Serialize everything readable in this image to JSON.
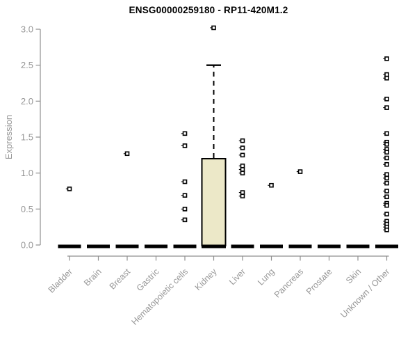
{
  "chart_data": {
    "type": "boxplot",
    "title": "ENSG00000259180 - RP11-420M1.2",
    "ylabel": "Expression",
    "xlabel": "",
    "ylim": [
      0.0,
      3.0
    ],
    "yticks": [
      0.0,
      0.5,
      1.0,
      1.5,
      2.0,
      2.5,
      3.0
    ],
    "grid": false,
    "legend": null,
    "categories": [
      "Bladder",
      "Brain",
      "Breast",
      "Gastric",
      "Hematopoietic cells",
      "Kidney",
      "Liver",
      "Lung",
      "Pancreas",
      "Prostate",
      "Skin",
      "Unknown / Other"
    ],
    "boxes": [
      {
        "category": "Bladder",
        "q1": 0,
        "median": 0,
        "q3": 0,
        "whisker_low": 0,
        "whisker_high": 0,
        "points": [
          0.78
        ]
      },
      {
        "category": "Brain",
        "q1": 0,
        "median": 0,
        "q3": 0,
        "whisker_low": 0,
        "whisker_high": 0,
        "points": []
      },
      {
        "category": "Breast",
        "q1": 0,
        "median": 0,
        "q3": 0,
        "whisker_low": 0,
        "whisker_high": 0,
        "points": [
          1.27
        ]
      },
      {
        "category": "Gastric",
        "q1": 0,
        "median": 0,
        "q3": 0,
        "whisker_low": 0,
        "whisker_high": 0,
        "points": []
      },
      {
        "category": "Hematopoietic cells",
        "q1": 0,
        "median": 0,
        "q3": 0,
        "whisker_low": 0,
        "whisker_high": 0,
        "points": [
          1.55,
          1.38,
          0.88,
          0.69,
          0.5,
          0.35
        ]
      },
      {
        "category": "Kidney",
        "q1": 0,
        "median": 0,
        "q3": 1.2,
        "whisker_low": 0,
        "whisker_high": 2.5,
        "points": [
          3.02
        ]
      },
      {
        "category": "Liver",
        "q1": 0,
        "median": 0,
        "q3": 0,
        "whisker_low": 0,
        "whisker_high": 0,
        "points": [
          1.45,
          1.35,
          1.25,
          1.1,
          1.05,
          1.0,
          0.73,
          0.68
        ]
      },
      {
        "category": "Lung",
        "q1": 0,
        "median": 0,
        "q3": 0,
        "whisker_low": 0,
        "whisker_high": 0,
        "points": [
          0.83
        ]
      },
      {
        "category": "Pancreas",
        "q1": 0,
        "median": 0,
        "q3": 0,
        "whisker_low": 0,
        "whisker_high": 0,
        "points": [
          1.02
        ]
      },
      {
        "category": "Prostate",
        "q1": 0,
        "median": 0,
        "q3": 0,
        "whisker_low": 0,
        "whisker_high": 0,
        "points": []
      },
      {
        "category": "Skin",
        "q1": 0,
        "median": 0,
        "q3": 0,
        "whisker_low": 0,
        "whisker_high": 0,
        "points": []
      },
      {
        "category": "Unknown / Other",
        "q1": 0,
        "median": 0,
        "q3": 0,
        "whisker_low": 0,
        "whisker_high": 0,
        "points": [
          2.59,
          2.37,
          2.32,
          2.03,
          1.91,
          1.55,
          1.43,
          1.4,
          1.33,
          1.29,
          1.21,
          1.12,
          0.98,
          0.93,
          0.86,
          0.75,
          0.67,
          0.58,
          0.55,
          0.43,
          0.33,
          0.29,
          0.25,
          0.21
        ]
      }
    ],
    "colors": {
      "box_fill": "#ece8c8",
      "box_stroke": "#000000",
      "median": "#000000",
      "point_stroke": "#000000",
      "point_fill": "#ffffff",
      "axis": "#8f8f8f",
      "tick_label": "#979797",
      "title": "#000000",
      "background": "#ffffff"
    }
  }
}
